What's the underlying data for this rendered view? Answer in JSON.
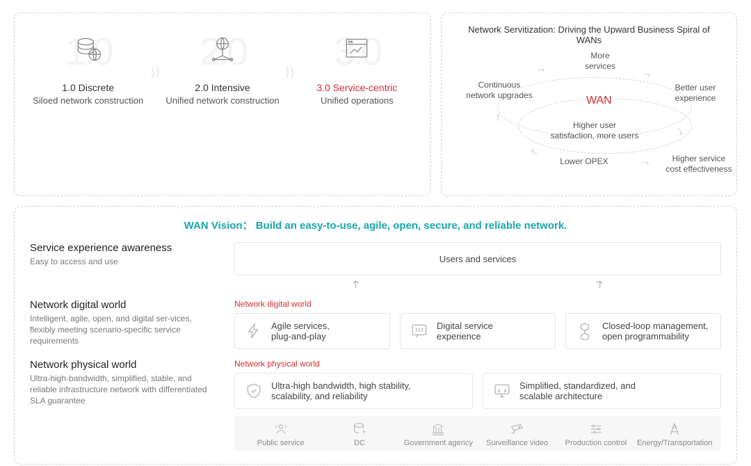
{
  "colors": {
    "accent_red": "#d22f2f",
    "accent_teal": "#17a7aa",
    "border_dashed": "#d0d0d0",
    "border_solid": "#e5e5e5",
    "icon_gray": "#bcbcbc",
    "text_main": "#333333",
    "text_muted": "#777777",
    "watermark": "#f3f3f3",
    "sector_bg": "#f7f7f7"
  },
  "stages": {
    "s1": {
      "watermark": "1.0",
      "title": "1.0 Discrete",
      "subtitle": "Siloed network construction"
    },
    "s2": {
      "watermark": "2.0",
      "title": "2.0 Intensive",
      "subtitle": "Unified network construction"
    },
    "s3": {
      "watermark": "3.0",
      "title": "3.0 Service-centric",
      "subtitle": "Unified operations"
    }
  },
  "spiral": {
    "title": "Network Servitization: Driving the Upward Business Spiral of WANs",
    "center": "WAN",
    "nodes": {
      "top": "More\nservices",
      "right": "Better user\nexperience",
      "bottom_right": "Higher service\ncost effectiveness",
      "bottom_left": "Lower OPEX",
      "mid": "Higher user\nsatisfaction, more users",
      "left": "Continuous\nnetwork upgrades"
    }
  },
  "vision": {
    "title_prefix": "WAN Vision：",
    "title_body": "Build an easy-to-use, agile, open, secure, and reliable network.",
    "rows": {
      "r1": {
        "heading": "Service experience awareness",
        "desc": "Easy to access and use",
        "card": "Users and services"
      },
      "r2": {
        "heading": "Network digital world",
        "desc": "Intelligent, agile, open, and digital ser-vices, flexibly meeting scenario-specific service requirements",
        "label": "Network digital world",
        "c1": "Agile services,\nplug-and-play",
        "c2": "Digital service\nexperience",
        "c3": "Closed-loop management,\nopen programmability"
      },
      "r3": {
        "heading": "Network physical world",
        "desc": "Ultra-high-bandwidth, simplified, stable, and reliable infrastructure network with differentiated SLA guarantee",
        "label": "Network physical world",
        "c1": "Ultra-high bandwidth, high stability,\nscalability, and reliability",
        "c2": "Simplified, standardized, and\nscalable architecture"
      }
    },
    "sectors": {
      "s1": "Public service",
      "s2": "DC",
      "s3": "Government agency",
      "s4": "Surveillance video",
      "s5": "Production control",
      "s6": "Energy/Transportation"
    }
  }
}
